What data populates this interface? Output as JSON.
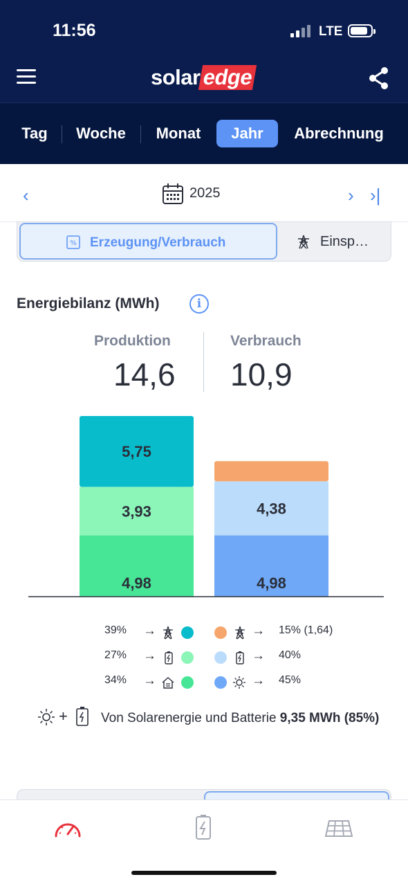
{
  "status_bar": {
    "time": "11:56",
    "network": "LTE"
  },
  "header": {
    "logo_part1": "solar",
    "logo_part2": "edge"
  },
  "tabs": [
    {
      "label": "Tag",
      "active": false
    },
    {
      "label": "Woche",
      "active": false
    },
    {
      "label": "Monat",
      "active": false
    },
    {
      "label": "Jahr",
      "active": true
    },
    {
      "label": "Abrechnung",
      "active": false
    }
  ],
  "date_nav": {
    "prev": "‹",
    "year": "2025",
    "next": "›",
    "last": "›|"
  },
  "segments": {
    "active": "Erzeugung/Verbrauch",
    "second": "Einsp…"
  },
  "section": {
    "title": "Energiebilanz (MWh)",
    "info": "i"
  },
  "kpi": {
    "production_label": "Produktion",
    "production_value": "14,6",
    "consumption_label": "Verbrauch",
    "consumption_value": "10,9"
  },
  "chart_data": {
    "type": "bar",
    "stacked": true,
    "categories": [
      "Produktion",
      "Verbrauch"
    ],
    "series": [
      {
        "values": [
          4.98,
          4.98
        ],
        "colors": [
          "#47e696",
          "#6fa8f7"
        ],
        "labels": [
          "4,98",
          "4,98"
        ]
      },
      {
        "values": [
          3.93,
          4.38
        ],
        "colors": [
          "#8cf5b8",
          "#bcdcfb"
        ],
        "labels": [
          "3,93",
          "4,38"
        ]
      },
      {
        "values": [
          5.75,
          1.64
        ],
        "colors": [
          "#08bccc",
          "#f6a66d"
        ],
        "labels": [
          "5,75",
          ""
        ]
      }
    ],
    "colors": {
      "prod_grid": "#08bccc",
      "prod_battery": "#8cf5b8",
      "prod_house": "#47e696",
      "cons_grid": "#f6a66d",
      "cons_battery": "#bcdcfb",
      "cons_solar": "#6fa8f7"
    }
  },
  "legend": {
    "rows": [
      {
        "left_pct": "39%",
        "left_icon": "grid-pylon-icon",
        "left_color": "#08bccc",
        "right_color": "#f6a66d",
        "right_icon": "grid-pylon-icon",
        "right_pct": "15% (1,64)"
      },
      {
        "left_pct": "27%",
        "left_icon": "battery-icon",
        "left_color": "#8cf5b8",
        "right_color": "#bcdcfb",
        "right_icon": "battery-icon",
        "right_pct": "40%"
      },
      {
        "left_pct": "34%",
        "left_icon": "house-icon",
        "left_color": "#47e696",
        "right_color": "#6fa8f7",
        "right_icon": "sun-icon",
        "right_pct": "45%"
      }
    ]
  },
  "summary": {
    "plus": "+",
    "text": "Von Solarenergie und Batterie",
    "value": "9,35 MWh (85%)"
  },
  "nav": [
    {
      "icon": "dashboard-gauge-icon",
      "active": true
    },
    {
      "icon": "battery-icon",
      "active": false
    },
    {
      "icon": "solar-panel-icon",
      "active": false
    }
  ]
}
